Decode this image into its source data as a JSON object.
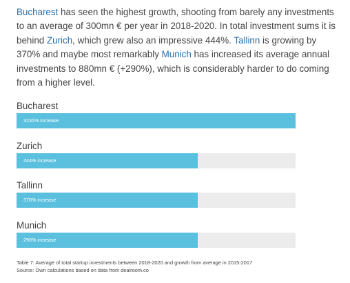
{
  "paragraph": {
    "s1_link": "Bucharest",
    "s1_text": " has seen the highest growth, shooting from barely any investments to an average of 300mn € per year in 2018-2020. In total investment sums it is behind ",
    "s2_link": "Zurich",
    "s2_text": ", which grew also an impressive 444%. ",
    "s3_link": "Tallinn",
    "s3_text": " is growing by 370% and maybe most remarkably ",
    "s4_link": "Munich",
    "s4_text": " has increased its average annual investments to 880mn € (+290%), which is considerably harder to do coming from a higher level."
  },
  "bars": [
    {
      "label": "Bucharest",
      "bar_text": "3231% increase",
      "fill_fraction": 1.0
    },
    {
      "label": "Zurich",
      "bar_text": "444% increase",
      "fill_fraction": 0.65
    },
    {
      "label": "Tallinn",
      "bar_text": "370% increase",
      "fill_fraction": 0.65
    },
    {
      "label": "Munich",
      "bar_text": "290% increase",
      "fill_fraction": 0.65
    }
  ],
  "caption": {
    "line1": "Table 7: Average of total startup investments between 2018-2020 and growth from average in 2015-2017",
    "line2": "Source: Own calculations based on data from dealroom.co"
  },
  "colors": {
    "bar_fill": "#5bc0de",
    "bar_track": "#ececec",
    "link": "#2a6ea6"
  }
}
